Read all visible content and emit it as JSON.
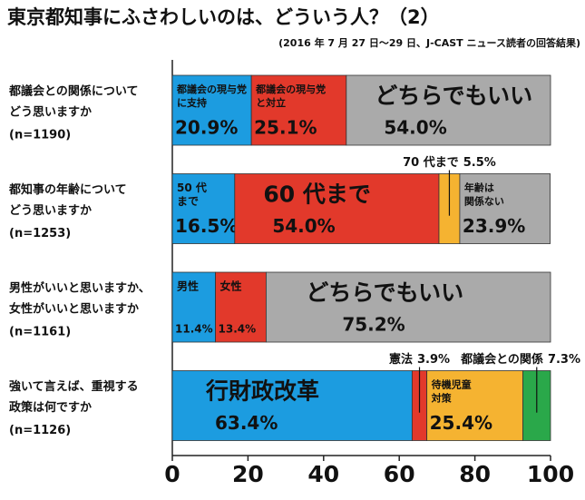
{
  "chart_data": {
    "type": "stacked-hbar",
    "title": "東京都知事にふさわしいのは、どういう人？（2）",
    "subtitle": "(2016 年 7 月 27 日〜29 日、J-CAST ニュース読者の回答結果)",
    "xlim": [
      0,
      100
    ],
    "xticks": [
      0,
      20,
      40,
      60,
      80,
      100
    ],
    "rows": [
      {
        "label_lines": [
          "都議会との関係について",
          "どう思いますか"
        ],
        "n_label": "(n=1190)",
        "segments": [
          {
            "name_lines": [
              "都議会の現与党",
              "に支持"
            ],
            "value": 20.9,
            "value_label": "20.9%",
            "color": "#1c9ce0"
          },
          {
            "name_lines": [
              "都議会の現与党",
              "と対立"
            ],
            "value": 25.1,
            "value_label": "25.1%",
            "color": "#e2392b"
          },
          {
            "name_lines": [
              "どちらでもいい"
            ],
            "value": 54.0,
            "value_label": "54.0%",
            "color": "#aaaaaa"
          }
        ]
      },
      {
        "label_lines": [
          "都知事の年齢について",
          "どう思いますか"
        ],
        "n_label": "(n=1253)",
        "segments": [
          {
            "name_lines": [
              "50 代",
              "まで"
            ],
            "value": 16.5,
            "value_label": "16.5%",
            "color": "#1c9ce0"
          },
          {
            "name_lines": [
              "60 代まで"
            ],
            "value": 54.0,
            "value_label": "54.0%",
            "color": "#e2392b"
          },
          {
            "name_lines": [
              "70 代まで"
            ],
            "value": 5.5,
            "value_label": "5.5%",
            "color": "#f5b331",
            "outside": true
          },
          {
            "name_lines": [
              "年齢は",
              "関係ない"
            ],
            "value": 23.9,
            "value_label": "23.9%",
            "color": "#aaaaaa"
          }
        ]
      },
      {
        "label_lines": [
          "男性がいいと思いますか、",
          "女性がいいと思いますか"
        ],
        "n_label": "(n=1161)",
        "segments": [
          {
            "name_lines": [
              "男性"
            ],
            "value": 11.4,
            "value_label": "11.4%",
            "color": "#1c9ce0"
          },
          {
            "name_lines": [
              "女性"
            ],
            "value": 13.4,
            "value_label": "13.4%",
            "color": "#e2392b"
          },
          {
            "name_lines": [
              "どちらでもいい"
            ],
            "value": 75.2,
            "value_label": "75.2%",
            "color": "#aaaaaa"
          }
        ]
      },
      {
        "label_lines": [
          "強いて言えば、重視する",
          "政策は何ですか"
        ],
        "n_label": "(n=1126)",
        "segments": [
          {
            "name_lines": [
              "行財政改革"
            ],
            "value": 63.4,
            "value_label": "63.4%",
            "color": "#1c9ce0"
          },
          {
            "name_lines": [
              "憲法"
            ],
            "value": 3.9,
            "value_label": "3.9%",
            "color": "#e2392b",
            "outside": true
          },
          {
            "name_lines": [
              "待機児童",
              "対策"
            ],
            "value": 25.4,
            "value_label": "25.4%",
            "color": "#f5b331"
          },
          {
            "name_lines": [
              "都議会との関係"
            ],
            "value": 7.3,
            "value_label": "7.3%",
            "color": "#2aa84a",
            "outside": true
          }
        ]
      }
    ]
  }
}
